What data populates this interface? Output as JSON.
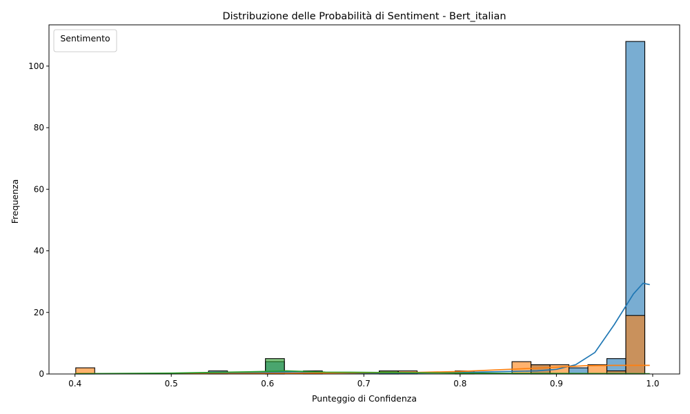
{
  "chart_data": {
    "type": "histogram",
    "title": "Distribuzione delle Probabilità di Sentiment - Bert_italian",
    "xlabel": "Punteggio di Confidenza",
    "ylabel": "Frequenza",
    "xlim": [
      0.373,
      1.028
    ],
    "ylim": [
      0,
      113.4
    ],
    "xticks": [
      0.4,
      0.5,
      0.6,
      0.7,
      0.8,
      0.9,
      1.0
    ],
    "yticks": [
      0,
      20,
      40,
      60,
      80,
      100
    ],
    "bin_edges": [
      0.4008,
      0.4205,
      0.4402,
      0.4599,
      0.4796,
      0.4993,
      0.519,
      0.5387,
      0.5584,
      0.5781,
      0.5978,
      0.6175,
      0.6372,
      0.6569,
      0.6766,
      0.6963,
      0.716,
      0.7357,
      0.7554,
      0.7751,
      0.7948,
      0.8145,
      0.8342,
      0.8539,
      0.8736,
      0.8933,
      0.913,
      0.9327,
      0.9524,
      0.9721,
      0.9918
    ],
    "legend": {
      "title": "Sentimento",
      "placement": "top-left"
    },
    "series": [
      {
        "color": "#1f77b4",
        "counts": [
          0,
          0,
          0,
          0,
          0,
          0,
          0,
          1,
          0,
          0,
          4,
          0,
          1,
          0,
          0,
          0,
          0,
          0,
          0,
          0,
          0,
          0,
          0,
          0,
          3,
          0,
          2,
          0,
          5,
          108
        ],
        "kde": [
          [
            0.4,
            0.05
          ],
          [
            0.45,
            0.1
          ],
          [
            0.5,
            0.2
          ],
          [
            0.55,
            0.3
          ],
          [
            0.6,
            0.5
          ],
          [
            0.63,
            0.7
          ],
          [
            0.66,
            0.4
          ],
          [
            0.7,
            0.3
          ],
          [
            0.75,
            0.3
          ],
          [
            0.8,
            0.5
          ],
          [
            0.85,
            0.8
          ],
          [
            0.88,
            1.0
          ],
          [
            0.9,
            1.5
          ],
          [
            0.92,
            3.0
          ],
          [
            0.94,
            7.0
          ],
          [
            0.96,
            16.0
          ],
          [
            0.98,
            26.0
          ],
          [
            0.99,
            29.5
          ],
          [
            0.997,
            29.0
          ]
        ]
      },
      {
        "color": "#ff7f0e",
        "counts": [
          2,
          0,
          0,
          0,
          0,
          0,
          0,
          0,
          0,
          0,
          0,
          0,
          0,
          0,
          0,
          0,
          1,
          1,
          0,
          0,
          1,
          0,
          0,
          4,
          3,
          3,
          0,
          3,
          1,
          19
        ],
        "kde": [
          [
            0.4,
            0.2
          ],
          [
            0.45,
            0.1
          ],
          [
            0.5,
            0.1
          ],
          [
            0.55,
            0.1
          ],
          [
            0.6,
            0.2
          ],
          [
            0.65,
            0.3
          ],
          [
            0.7,
            0.4
          ],
          [
            0.75,
            0.5
          ],
          [
            0.8,
            0.8
          ],
          [
            0.85,
            1.5
          ],
          [
            0.9,
            2.2
          ],
          [
            0.93,
            2.7
          ],
          [
            0.96,
            2.8
          ],
          [
            0.997,
            2.8
          ]
        ]
      },
      {
        "color": "#2ca02c",
        "counts": [
          0,
          0,
          0,
          0,
          0,
          0,
          0,
          0,
          0,
          0,
          5,
          0,
          0,
          0,
          0,
          0,
          1,
          0,
          0,
          0,
          0,
          0,
          0,
          0,
          0,
          0,
          0,
          0,
          0,
          0
        ],
        "kde": [
          [
            0.4,
            0.1
          ],
          [
            0.5,
            0.3
          ],
          [
            0.58,
            0.7
          ],
          [
            0.62,
            1.0
          ],
          [
            0.66,
            0.6
          ],
          [
            0.72,
            0.5
          ],
          [
            0.8,
            0.3
          ],
          [
            0.88,
            0.2
          ],
          [
            0.95,
            0.15
          ],
          [
            0.997,
            0.1
          ]
        ]
      }
    ]
  }
}
